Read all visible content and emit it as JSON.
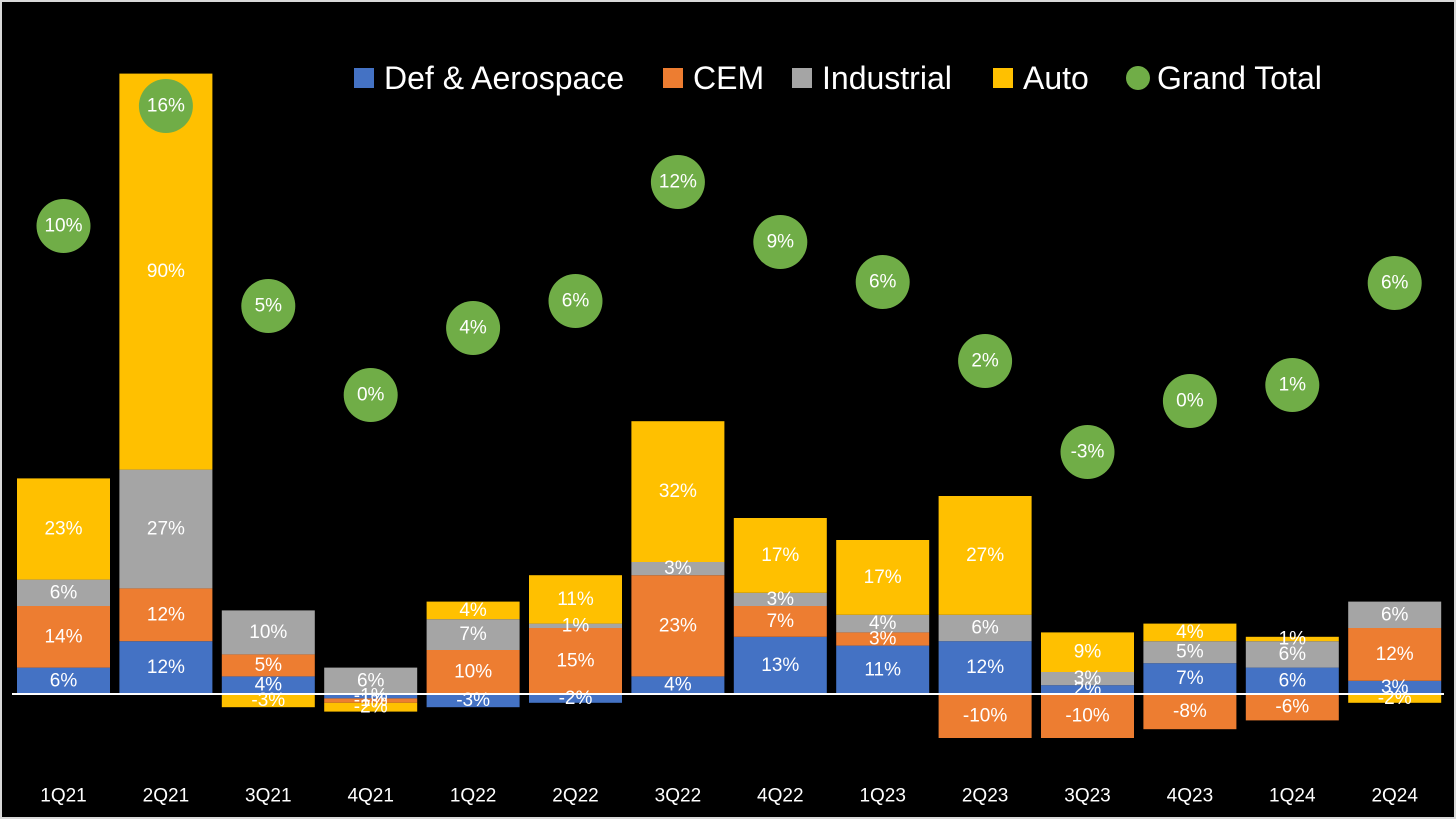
{
  "chart_data": {
    "type": "bar",
    "stacked": true,
    "title": "",
    "xlabel": "",
    "ylabel": "",
    "grid": false,
    "legend_position": "top-center",
    "categories": [
      "1Q21",
      "2Q21",
      "3Q21",
      "4Q21",
      "1Q22",
      "2Q22",
      "3Q22",
      "4Q22",
      "1Q23",
      "2Q23",
      "3Q23",
      "4Q23",
      "1Q24",
      "2Q24"
    ],
    "series": [
      {
        "name": "Def & Aerospace",
        "color": "#4472c4",
        "values": [
          6,
          12,
          4,
          -1,
          -3,
          -2,
          4,
          13,
          11,
          12,
          2,
          7,
          6,
          3
        ]
      },
      {
        "name": "CEM",
        "color": "#ed7d31",
        "values": [
          14,
          12,
          5,
          -1,
          10,
          15,
          23,
          7,
          3,
          -10,
          -10,
          -8,
          -6,
          12
        ]
      },
      {
        "name": "Industrial",
        "color": "#a5a5a5",
        "values": [
          6,
          27,
          10,
          6,
          7,
          1,
          3,
          3,
          4,
          6,
          3,
          5,
          6,
          6
        ]
      },
      {
        "name": "Auto",
        "color": "#ffc000",
        "values": [
          23,
          90,
          -3,
          -2,
          4,
          11,
          32,
          17,
          17,
          27,
          9,
          4,
          1,
          -2
        ]
      }
    ],
    "total": {
      "name": "Grand Total",
      "color": "#70ad47",
      "values": [
        10,
        16,
        5,
        0,
        4,
        6,
        12,
        9,
        6,
        2,
        -3,
        0,
        1,
        6
      ]
    },
    "value_suffix": "%",
    "axis_line_color": "#ffffff"
  }
}
